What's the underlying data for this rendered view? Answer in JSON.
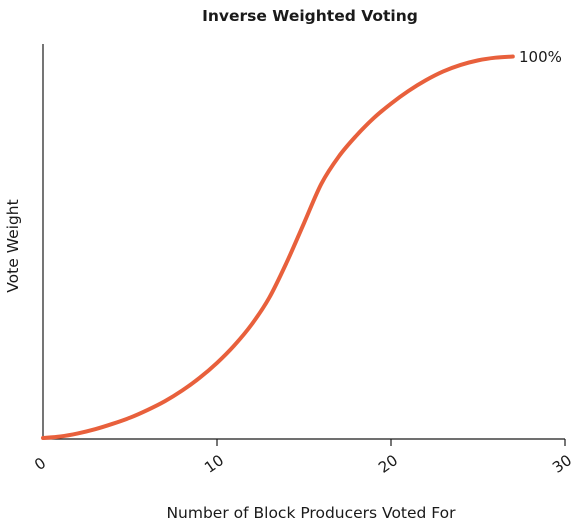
{
  "chart_data": {
    "type": "line",
    "title": "Inverse Weighted Voting",
    "xlabel": "Number of Block Producers Voted For",
    "ylabel": "Vote Weight",
    "xlim": [
      0,
      30
    ],
    "ylim": [
      0,
      100
    ],
    "x_ticks": [
      "0",
      "10",
      "20",
      "30"
    ],
    "grid": false,
    "series": [
      {
        "color": "#e8603c",
        "x": [
          0,
          1,
          2,
          3,
          4,
          5,
          6,
          7,
          8,
          9,
          10,
          11,
          12,
          13,
          14,
          15,
          16,
          17,
          18,
          19,
          20,
          21,
          22,
          23,
          24,
          25,
          26,
          27
        ],
        "y": [
          0,
          0.4,
          1.2,
          2.3,
          3.7,
          5.3,
          7.3,
          9.6,
          12.4,
          15.7,
          19.6,
          24.2,
          29.7,
          36.6,
          45.8,
          56.1,
          66.4,
          73.5,
          78.9,
          83.5,
          87.3,
          90.6,
          93.4,
          95.7,
          97.4,
          98.6,
          99.3,
          99.6
        ]
      }
    ],
    "annotations": [
      {
        "text": "100%",
        "x": 27,
        "y": 100
      }
    ]
  }
}
